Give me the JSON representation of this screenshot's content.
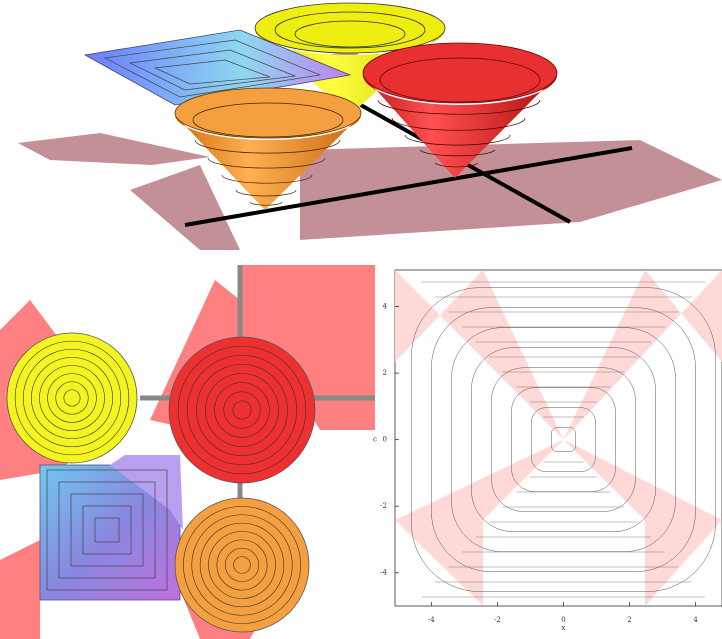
{
  "contour_plot": {
    "xlabel": "x",
    "ylabel": "c",
    "xlim": [
      -5.1,
      4.8
    ],
    "ylim": [
      -5.0,
      5.1
    ],
    "xticks": [
      -4,
      -2,
      0,
      2,
      4
    ],
    "yticks": [
      -4,
      -2,
      0,
      2,
      4
    ]
  }
}
